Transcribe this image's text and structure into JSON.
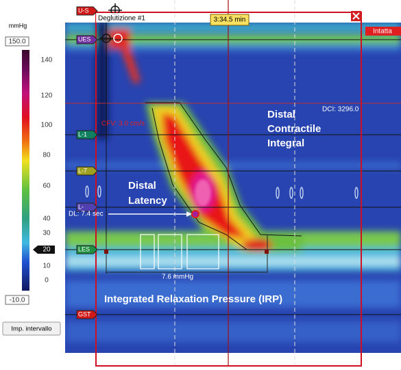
{
  "colorbar": {
    "unit": "mmHg",
    "max": "150.0",
    "min": "-10.0",
    "ticks": [
      140,
      120,
      100,
      80,
      60,
      40,
      30,
      10,
      0
    ],
    "marker": 20
  },
  "button": "Imp. intervallo",
  "sensors": [
    "U-S",
    "UES",
    "L-1",
    "L-7",
    "L-",
    "LES",
    "GST"
  ],
  "header": {
    "title": "Deglutizione #1",
    "time": "3:34.5 min",
    "status": "Intatta"
  },
  "annotations": {
    "dci": "DCI: 3296.0",
    "cfv": "CFV: 3.0 cm/s",
    "dl": "DL: 7.4 sec",
    "irp_value": "7.6 mmHg"
  },
  "labels": {
    "dci": [
      "Distal",
      "Contractile",
      "Integral"
    ],
    "dl": [
      "Distal",
      "Latency"
    ],
    "irp": "Integrated Relaxation Pressure (IRP)"
  }
}
